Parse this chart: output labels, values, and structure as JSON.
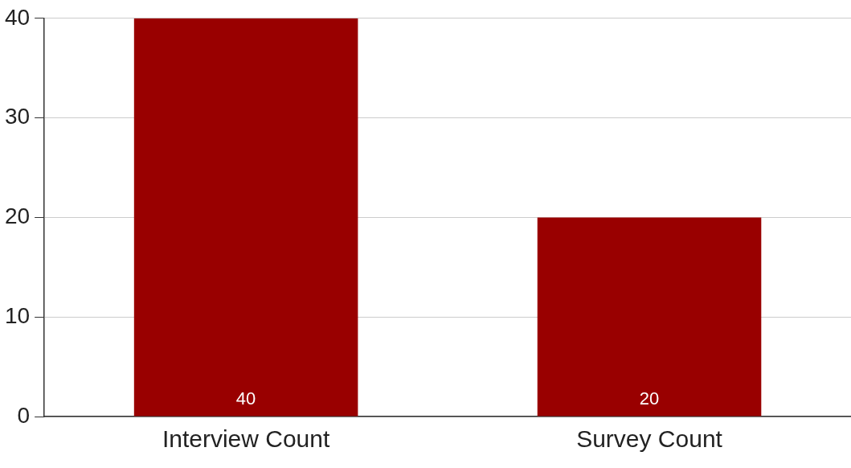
{
  "chart_data": {
    "type": "bar",
    "categories": [
      "Interview Count",
      "Survey Count"
    ],
    "values": [
      40,
      20
    ],
    "color": "#990000",
    "ylim": [
      0,
      40
    ],
    "yticks": [
      0,
      10,
      20,
      30,
      40
    ],
    "grid": "y",
    "data_labels": true
  }
}
